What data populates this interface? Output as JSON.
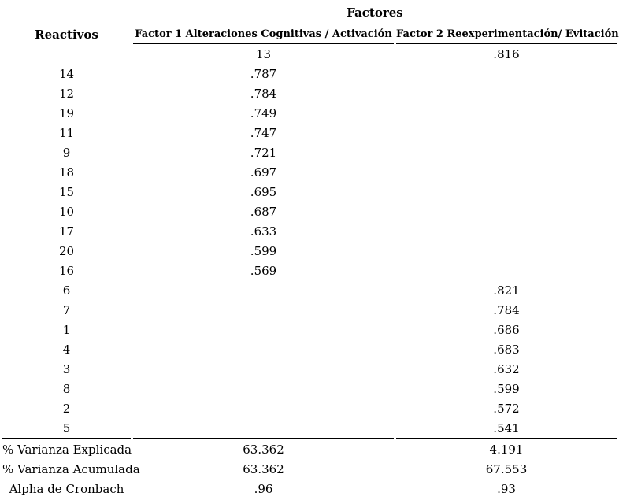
{
  "page": {
    "background_color": "#ffffff",
    "text_color": "#000000",
    "rule_color": "#000000"
  },
  "table": {
    "title": "Factores",
    "header": {
      "reactivos": "Reactivos",
      "factor1": "Factor 1 Alteraciones Cognitivas / Activación",
      "factor2": "Factor 2 Reexperimentación/ Evitación"
    },
    "rows": [
      {
        "reactivo": "",
        "factor1": "13",
        "factor2": ".816"
      },
      {
        "reactivo": "14",
        "factor1": ".787",
        "factor2": ""
      },
      {
        "reactivo": "12",
        "factor1": ".784",
        "factor2": ""
      },
      {
        "reactivo": "19",
        "factor1": ".749",
        "factor2": ""
      },
      {
        "reactivo": "11",
        "factor1": ".747",
        "factor2": ""
      },
      {
        "reactivo": "9",
        "factor1": ".721",
        "factor2": ""
      },
      {
        "reactivo": "18",
        "factor1": ".697",
        "factor2": ""
      },
      {
        "reactivo": "15",
        "factor1": ".695",
        "factor2": ""
      },
      {
        "reactivo": "10",
        "factor1": ".687",
        "factor2": ""
      },
      {
        "reactivo": "17",
        "factor1": ".633",
        "factor2": ""
      },
      {
        "reactivo": "20",
        "factor1": ".599",
        "factor2": ""
      },
      {
        "reactivo": "16",
        "factor1": ".569",
        "factor2": ""
      },
      {
        "reactivo": "6",
        "factor1": "",
        "factor2": ".821"
      },
      {
        "reactivo": "7",
        "factor1": "",
        "factor2": ".784"
      },
      {
        "reactivo": "1",
        "factor1": "",
        "factor2": ".686"
      },
      {
        "reactivo": "4",
        "factor1": "",
        "factor2": ".683"
      },
      {
        "reactivo": "3",
        "factor1": "",
        "factor2": ".632"
      },
      {
        "reactivo": "8",
        "factor1": "",
        "factor2": ".599"
      },
      {
        "reactivo": "2",
        "factor1": "",
        "factor2": ".572"
      },
      {
        "reactivo": "5",
        "factor1": "",
        "factor2": ".541"
      }
    ],
    "summary_rows": [
      {
        "label": "% Varianza Explicada",
        "factor1": "63.362",
        "factor2": "4.191"
      },
      {
        "label": "% Varianza Acumulada",
        "factor1": "63.362",
        "factor2": "67.553"
      },
      {
        "label": "Alpha de Cronbach",
        "factor1": ".96",
        "factor2": ".93"
      }
    ]
  }
}
